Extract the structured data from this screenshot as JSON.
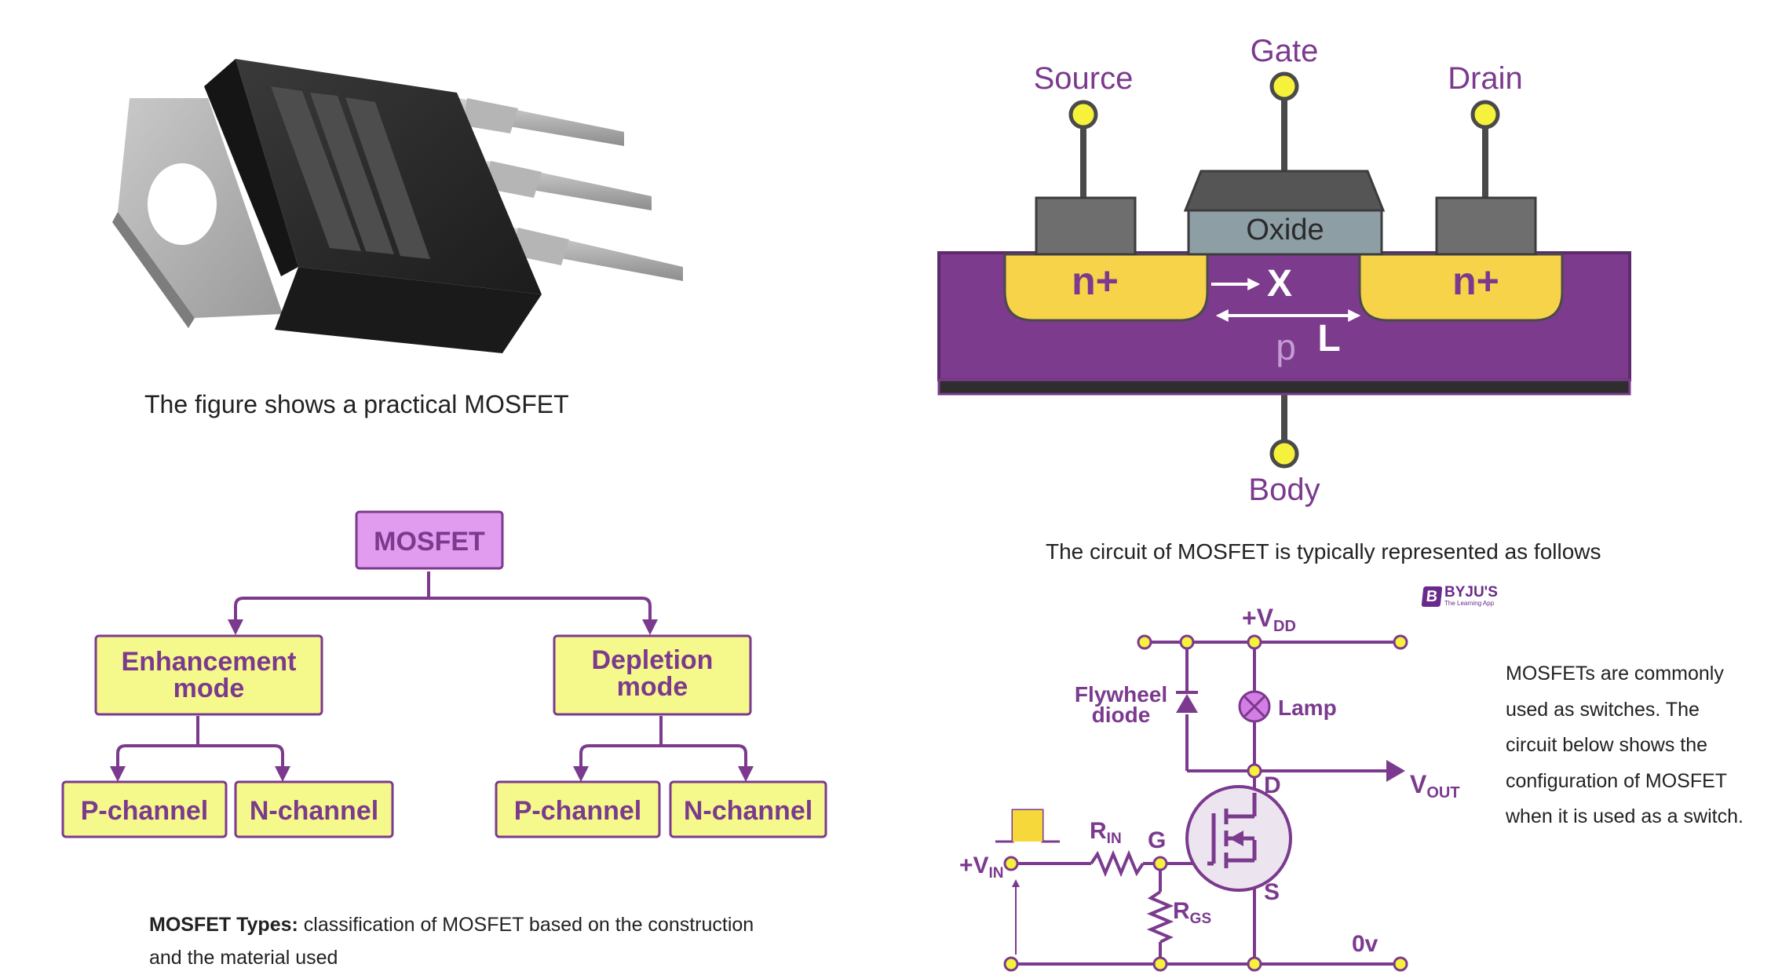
{
  "captions": {
    "practical": "The figure shows a practical MOSFET",
    "circuit": "The circuit of MOSFET is typically represented as follows",
    "types_bold": "MOSFET Types:",
    "types_rest": " classification of MOSFET based on the construction and the material used",
    "switch": "MOSFETs are commonly used as switches. The circuit below shows the configuration of MOSFET when it is used as a switch."
  },
  "structure": {
    "source": "Source",
    "gate": "Gate",
    "drain": "Drain",
    "body": "Body",
    "oxide": "Oxide",
    "n_left": "n+",
    "n_right": "n+",
    "x": "X",
    "l": "L",
    "p": "p"
  },
  "tree": {
    "root": "MOSFET",
    "enh_line1": "Enhancement",
    "enh_line2": "mode",
    "dep_line1": "Depletion",
    "dep_line2": "mode",
    "enh_p": "P-channel",
    "enh_n": "N-channel",
    "dep_p": "P-channel",
    "dep_n": "N-channel"
  },
  "circuit": {
    "vdd_main": "+V",
    "vdd_sub": "DD",
    "flywheel_line1": "Flywheel",
    "flywheel_line2": "diode",
    "lamp": "Lamp",
    "vout_main": "V",
    "vout_sub": "OUT",
    "d": "D",
    "g": "G",
    "s": "S",
    "rin_main": "R",
    "rin_sub": "IN",
    "rgs_main": "R",
    "rgs_sub": "GS",
    "vin_main": "+V",
    "vin_sub": "IN",
    "zero_v": "0v"
  },
  "brand": {
    "mark": "B",
    "name": "BYJU'S",
    "tagline": "The Learning App"
  },
  "colors": {
    "purple": "#7b3a8e",
    "body_purple": "#7c3b8d",
    "yellow": "#f7d34a",
    "box_yellow": "#f5f88a",
    "root_pink": "#e19cf0",
    "terminal_yellow": "#f6f13a",
    "metal_gray": "#6e6e6e",
    "oxide_gray": "#8d9ea4",
    "package_black": "#2b2b2b"
  }
}
